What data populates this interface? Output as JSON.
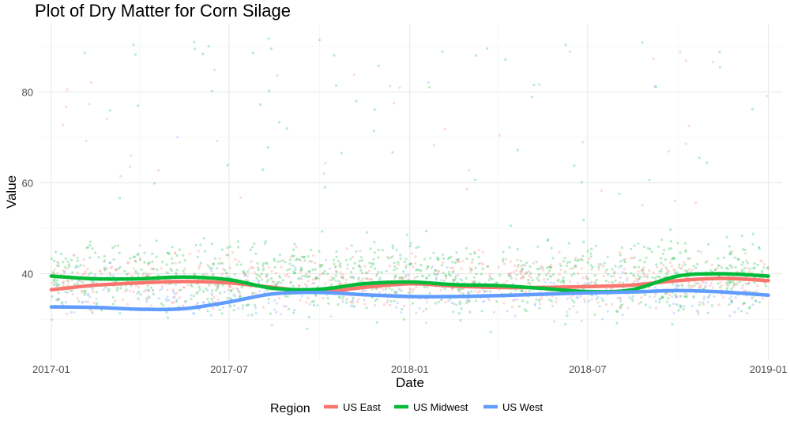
{
  "chart_data": {
    "type": "scatter",
    "title": "Plot of Dry Matter for Corn Silage",
    "xlabel": "Date",
    "ylabel": "Value",
    "x_range": [
      "2016-12-20",
      "2019-01-15"
    ],
    "ylim": [
      21,
      95
    ],
    "x_ticks": [
      "2017-01",
      "2017-07",
      "2018-01",
      "2018-07",
      "2019-01"
    ],
    "x_minor_ticks": [
      "2017-04",
      "2017-10",
      "2018-04",
      "2018-10"
    ],
    "y_ticks": [
      40,
      60,
      80
    ],
    "y_minor_ticks": [
      30,
      50,
      70,
      90
    ],
    "grid": true,
    "legend": {
      "title": "Region",
      "position": "bottom"
    },
    "colors": {
      "US East": "#F8766D",
      "US Midwest": "#00BA38",
      "US West": "#619CFF"
    },
    "series": [
      {
        "name": "US East",
        "smooth_x": [
          "2017-01-01",
          "2017-02-15",
          "2017-04-01",
          "2017-05-15",
          "2017-07-01",
          "2017-08-15",
          "2017-10-01",
          "2017-11-15",
          "2018-01-01",
          "2018-02-15",
          "2018-04-01",
          "2018-05-15",
          "2018-07-01",
          "2018-08-15",
          "2018-10-01",
          "2018-11-15",
          "2019-01-01"
        ],
        "smooth_y": [
          36.5,
          37.5,
          38.0,
          38.3,
          38.0,
          37.0,
          36.0,
          37.0,
          37.8,
          37.3,
          37.0,
          37.0,
          37.2,
          37.5,
          38.5,
          39.0,
          38.5
        ]
      },
      {
        "name": "US Midwest",
        "smooth_x": [
          "2017-01-01",
          "2017-02-15",
          "2017-04-01",
          "2017-05-15",
          "2017-07-01",
          "2017-08-15",
          "2017-10-01",
          "2017-11-15",
          "2018-01-01",
          "2018-02-15",
          "2018-04-01",
          "2018-05-15",
          "2018-07-01",
          "2018-08-15",
          "2018-10-01",
          "2018-11-15",
          "2019-01-01"
        ],
        "smooth_y": [
          39.5,
          38.9,
          38.9,
          39.3,
          38.7,
          36.8,
          36.6,
          37.8,
          38.2,
          37.6,
          37.4,
          36.8,
          36.1,
          36.5,
          39.5,
          40.0,
          39.5
        ]
      },
      {
        "name": "US West",
        "smooth_x": [
          "2017-01-01",
          "2017-02-15",
          "2017-04-01",
          "2017-05-15",
          "2017-07-01",
          "2017-08-15",
          "2017-10-01",
          "2017-11-15",
          "2018-01-01",
          "2018-02-15",
          "2018-04-01",
          "2018-05-15",
          "2018-07-01",
          "2018-08-15",
          "2018-10-01",
          "2018-11-15",
          "2019-01-01"
        ],
        "smooth_y": [
          32.7,
          32.6,
          32.2,
          32.3,
          33.8,
          35.6,
          35.9,
          35.4,
          35.0,
          35.0,
          35.2,
          35.5,
          35.8,
          36.0,
          36.3,
          36.0,
          35.3
        ]
      }
    ],
    "scatter_spread": {
      "US East": [
        27,
        50
      ],
      "US Midwest": [
        24,
        55
      ],
      "US West": [
        25,
        46
      ]
    }
  }
}
